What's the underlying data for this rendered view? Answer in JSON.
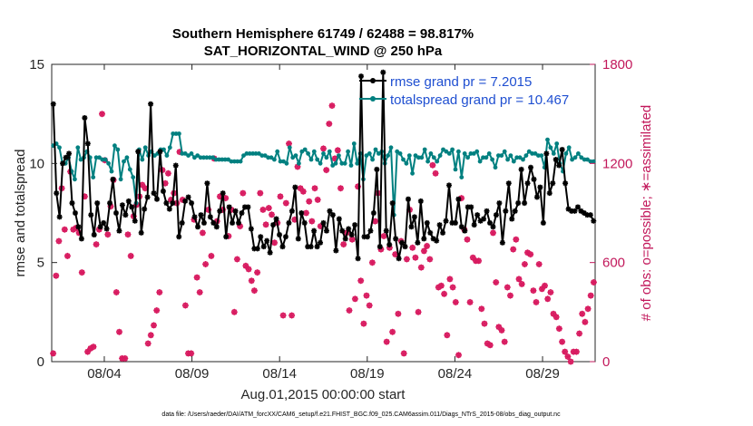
{
  "chart_data": {
    "type": "line",
    "title": "Southern Hemisphere 61749 / 62488 = 98.817%",
    "subtitle": "SAT_HORIZONTAL_WIND @ 250 hPa",
    "xlabel": "Aug.01,2015 00:00:00 start",
    "ylabel": "rmse and totalspread",
    "ylabel_right": "# of obs: o=possible; ∗=assimilated",
    "x_tick_labels": [
      "08/04",
      "08/09",
      "08/14",
      "08/19",
      "08/24",
      "08/29"
    ],
    "x_tick_days": [
      3,
      8,
      13,
      18,
      23,
      28
    ],
    "xlim_days": [
      0,
      31
    ],
    "ylim": [
      0,
      15
    ],
    "y_ticks": [
      "0",
      "5",
      "10",
      "15"
    ],
    "ylim_right": [
      0,
      1800
    ],
    "y_ticks_right": [
      "0",
      "600",
      "1200",
      "1800"
    ],
    "footer": "data file: /Users/raeder/DAI/ATM_forcXX/CAM6_setup/f.e21.FHIST_BGC.f09_025.CAM6assim.011/Diags_NTrS_2015-08/obs_diag_output.nc",
    "colors": {
      "rmse": "#000000",
      "spread": "#008080",
      "obs": "#d81b60",
      "legend_text": "#1f4fd1"
    },
    "series": [
      {
        "name": "rmse grand pr = 7.2015",
        "marker": "star",
        "values": [
          13.0,
          8.5,
          7.3,
          10.0,
          10.3,
          10.5,
          8.0,
          7.5,
          6.8,
          6.2,
          12.3,
          11.0,
          7.4,
          6.4,
          8.0,
          6.8,
          7.0,
          6.7,
          8.0,
          9.2,
          7.5,
          6.6,
          7.9,
          7.4,
          8.1,
          7.8,
          7.1,
          10.6,
          6.5,
          7.7,
          8.3,
          13.0,
          8.5,
          8.2,
          10.6,
          8.6,
          8.0,
          7.7,
          8.0,
          9.9,
          6.3,
          7.0,
          8.1,
          8.3,
          8.0,
          7.3,
          6.8,
          7.4,
          7.0,
          9.0,
          7.3,
          7.0,
          6.8,
          7.6,
          8.5,
          6.3,
          7.8,
          7.0,
          7.6,
          7.0,
          7.5,
          7.8,
          7.8,
          6.7,
          5.7,
          5.7,
          6.3,
          5.8,
          6.1,
          5.5,
          6.9,
          7.2,
          6.4,
          5.8,
          6.3,
          7.0,
          7.6,
          8.8,
          6.2,
          7.5,
          7.0,
          5.8,
          5.8,
          6.6,
          5.8,
          6.0,
          7.0,
          6.6,
          7.6,
          7.4,
          5.6,
          7.2,
          6.6,
          6.2,
          6.7,
          6.4,
          6.9,
          5.2,
          14.4,
          6.3,
          6.3,
          6.6,
          7.5,
          9.7,
          5.8,
          14.6,
          6.6,
          5.9,
          8.0,
          6.2,
          5.2,
          6.0,
          5.8,
          8.2,
          6.8,
          7.3,
          6.0,
          8.1,
          6.2,
          7.0,
          6.5,
          6.2,
          6.1,
          6.9,
          6.5,
          7.1,
          8.9,
          7.0,
          7.0,
          8.2,
          6.8,
          6.6,
          7.8,
          7.8,
          6.9,
          7.4,
          7.1,
          7.2,
          7.6,
          7.0,
          6.8,
          7.4,
          8.0,
          6.0,
          7.6,
          9.0,
          7.2,
          7.6,
          8.0,
          9.7,
          8.0,
          9.0,
          9.8,
          9.2,
          8.3,
          8.8,
          7.0,
          10.5,
          8.5,
          9.0,
          10.2,
          9.9,
          10.7,
          9.0,
          7.7,
          7.6,
          7.6,
          7.8,
          7.6,
          7.5,
          7.4,
          7.4,
          7.1
        ]
      },
      {
        "name": "totalspread grand pr = 10.467",
        "marker": "dot",
        "values": [
          10.9,
          11.0,
          10.8,
          10.0,
          10.0,
          10.3,
          9.6,
          9.2,
          10.8,
          10.2,
          10.3,
          10.6,
          10.3,
          9.3,
          10.3,
          10.3,
          10.2,
          10.2,
          10.0,
          9.6,
          10.9,
          10.7,
          9.2,
          10.1,
          10.3,
          9.7,
          9.3,
          8.0,
          10.7,
          10.2,
          10.8,
          10.4,
          10.6,
          10.4,
          10.5,
          10.7,
          10.7,
          10.4,
          10.8,
          11.5,
          11.5,
          11.5,
          10.5,
          10.5,
          10.4,
          10.5,
          10.3,
          10.4,
          10.3,
          10.3,
          10.3,
          10.3,
          10.3,
          10.2,
          10.2,
          10.2,
          10.2,
          10.2,
          10.1,
          10.1,
          10.1,
          10.1,
          10.4,
          10.5,
          10.5,
          10.5,
          10.5,
          10.5,
          10.4,
          10.4,
          10.3,
          10.3,
          10.2,
          10.6,
          10.1,
          10.1,
          10.0,
          10.8,
          10.3,
          10.4,
          10.0,
          10.6,
          10.7,
          10.5,
          10.2,
          10.6,
          10.2,
          10.0,
          10.5,
          10.3,
          10.6,
          9.9,
          10.0,
          10.4,
          10.0,
          10.0,
          10.6,
          9.9,
          11.0,
          10.0,
          10.5,
          9.2,
          10.4,
          10.5,
          10.2,
          10.7,
          10.5,
          10.6,
          10.0,
          10.4,
          10.8,
          7.4,
          10.6,
          10.5,
          10.2,
          10.0,
          10.4,
          9.5,
          10.4,
          10.3,
          10.3,
          10.7,
          10.1,
          10.5,
          10.3,
          10.1,
          10.4,
          10.7,
          10.6,
          10.5,
          10.7,
          9.7,
          10.6,
          9.3,
          10.5,
          10.3,
          10.5,
          10.5,
          10.6,
          10.1,
          10.3,
          10.3,
          10.5,
          10.2,
          9.8,
          10.4,
          10.4,
          10.6,
          10.2,
          10.4,
          10.1,
          10.3,
          10.3,
          10.2,
          10.4,
          10.6,
          10.5,
          10.5,
          10.4,
          10.4,
          9.8,
          11.2,
          10.8,
          10.5,
          11.0,
          10.0,
          9.6,
          10.5,
          10.8,
          10.2,
          10.3,
          10.5,
          10.3,
          10.2,
          10.2,
          10.1,
          10.1
        ]
      }
    ],
    "obs_possible": [
      50,
      520,
      730,
      1050,
      800,
      640,
      1150,
      800,
      810,
      780,
      540,
      1000,
      60,
      80,
      90,
      710,
      800,
      1500,
      1220,
      770,
      940,
      1100,
      420,
      180,
      20,
      20,
      770,
      640,
      880,
      950,
      1000,
      1070,
      1050,
      110,
      160,
      220,
      310,
      420,
      1160,
      1080,
      1140,
      980,
      1020,
      960,
      1270,
      980,
      340,
      50,
      50,
      860,
      510,
      420,
      780,
      590,
      920,
      640,
      1230,
      850,
      1000,
      920,
      990,
      760,
      920,
      300,
      620,
      820,
      1020,
      580,
      560,
      490,
      430,
      540,
      1020,
      920,
      830,
      930,
      890,
      720,
      840,
      1000,
      280,
      960,
      1320,
      280,
      860,
      1180,
      1050,
      1030,
      900,
      970,
      850,
      1050,
      980,
      820,
      1290,
      1160,
      1440,
      1550,
      1230,
      1280,
      1050,
      710,
      780,
      310,
      740,
      380,
      1060,
      490,
      230,
      400,
      340,
      600,
      850,
      1020,
      680,
      760,
      120,
      690,
      180,
      650,
      290,
      730,
      50,
      620,
      920,
      690,
      630,
      300,
      570,
      670,
      700,
      620,
      1190,
      1140,
      450,
      460,
      410,
      160,
      500,
      450,
      360,
      40,
      990,
      800,
      740,
      360,
      630,
      610,
      610,
      320,
      230,
      110,
      100,
      780,
      480,
      210,
      190,
      120,
      450,
      400,
      680,
      740,
      500,
      470,
      590,
      660,
      650,
      430,
      360,
      590,
      440,
      460,
      380,
      420,
      290,
      270,
      200,
      120,
      60,
      30,
      0,
      60,
      60,
      170,
      290,
      240,
      320,
      400,
      480
    ]
  }
}
